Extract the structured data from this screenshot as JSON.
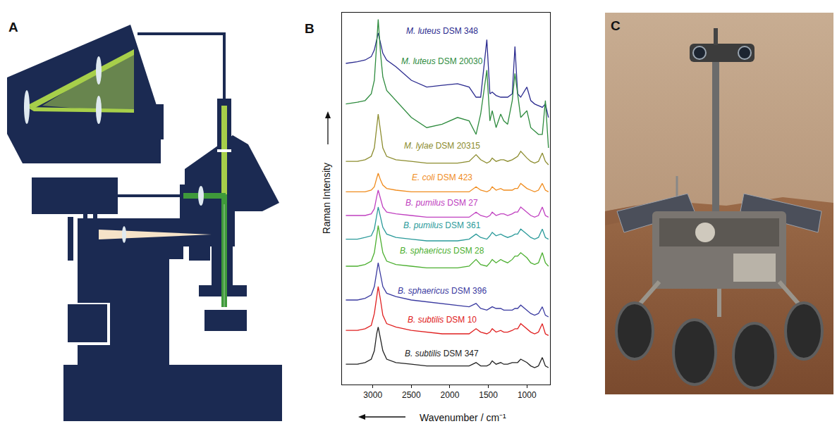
{
  "panel_labels": [
    "A",
    "B",
    "C"
  ],
  "chart_data": {
    "type": "line",
    "x_label": "Wavenumber / cm⁻¹",
    "y_label": "Raman Intensity",
    "x": [
      3350,
      3200,
      3100,
      3020,
      2980,
      2950,
      2930,
      2900,
      2870,
      2820,
      2700,
      2500,
      2300,
      2100,
      1900,
      1750,
      1660,
      1600,
      1520,
      1480,
      1450,
      1400,
      1340,
      1300,
      1250,
      1190,
      1155,
      1120,
      1080,
      1000,
      950,
      900,
      850,
      800,
      760,
      720
    ],
    "xlim": [
      3400,
      700
    ],
    "xticks": [
      3000,
      2500,
      2000,
      1500,
      1000
    ],
    "ylim": [
      0,
      110
    ],
    "yticks": [],
    "tick_labels": "x",
    "grid": false,
    "series": [
      {
        "name": "M. luteus DSM 348",
        "color": "#2b2b8f",
        "values": [
          95,
          95.5,
          96,
          97,
          99,
          102,
          104,
          101,
          98,
          96,
          94,
          90,
          88,
          88.5,
          89,
          88,
          85,
          85,
          102,
          86,
          86.5,
          85.5,
          85,
          85,
          85,
          86,
          100,
          86,
          85,
          88,
          84,
          83,
          82.5,
          82,
          83,
          79
        ]
      },
      {
        "name": "M. luteus DSM 20030",
        "color": "#2e8b3e",
        "values": [
          83,
          83.5,
          84,
          86,
          90,
          100,
          108,
          98,
          91,
          87,
          84,
          79,
          76,
          77,
          79,
          78,
          74,
          80,
          93,
          78,
          81,
          76,
          80,
          78,
          77,
          84,
          92,
          86,
          79,
          81,
          76,
          75,
          74,
          74,
          84,
          70
        ]
      },
      {
        "name": "M. lylae DSM 20315",
        "color": "#8c8c2e",
        "values": [
          66,
          66,
          66.5,
          67.5,
          70,
          76,
          80,
          75,
          70,
          67.5,
          66.5,
          66,
          65.5,
          65.5,
          65.5,
          66,
          68,
          66.5,
          65.5,
          66,
          67,
          66,
          66.5,
          66.5,
          66,
          66.5,
          67,
          67.5,
          69,
          67,
          66,
          65.5,
          66,
          68.5,
          66,
          65
        ]
      },
      {
        "name": "E. coli DSM 423",
        "color": "#f08c1e",
        "values": [
          57,
          57,
          57,
          57.5,
          58.5,
          61,
          62.5,
          60.5,
          59,
          58,
          57.5,
          57,
          57,
          57,
          57,
          57,
          58.5,
          57.5,
          57,
          57.5,
          58.5,
          57.5,
          58,
          57.5,
          57.5,
          57.5,
          58,
          58,
          59.5,
          58,
          57.5,
          57,
          57.5,
          59.5,
          57.5,
          57
        ]
      },
      {
        "name": "B. pumilus DSM 27",
        "color": "#c040c0",
        "values": [
          50,
          50,
          50,
          50.5,
          52,
          55.5,
          57.5,
          55,
          52.5,
          51,
          50.5,
          50,
          49.5,
          49.5,
          49.5,
          49.5,
          51,
          50,
          49.5,
          50,
          51,
          50,
          50.5,
          50.5,
          50,
          50.5,
          51,
          51,
          52.5,
          51,
          50,
          49.5,
          50,
          52.5,
          50,
          49.5
        ]
      },
      {
        "name": "B. pumilus DSM 361",
        "color": "#2a9a9a",
        "values": [
          43,
          43,
          43.5,
          44,
          46,
          50,
          52.5,
          49.5,
          46.5,
          44.5,
          43.5,
          43,
          42.5,
          42.5,
          42.5,
          43,
          44.5,
          43.5,
          43,
          44,
          45,
          44,
          44.5,
          44,
          43.5,
          44,
          44.5,
          44.5,
          46,
          44.5,
          43.5,
          43,
          43.5,
          46,
          43.5,
          43
        ]
      },
      {
        "name": "B. sphaericus DSM 28",
        "color": "#4caf30",
        "values": [
          35,
          35,
          35.5,
          36.5,
          39,
          44,
          47,
          43,
          39,
          36.5,
          35.5,
          35,
          34.5,
          34.5,
          34.5,
          35,
          37,
          35.5,
          35,
          36,
          37,
          36,
          37,
          36.5,
          36,
          37,
          38,
          38,
          39,
          37.5,
          36,
          35.5,
          36,
          39,
          36,
          35
        ]
      },
      {
        "name": "B. sphaericus DSM 396",
        "color": "#3a3aa0",
        "values": [
          25,
          25,
          25.5,
          26.5,
          29,
          33.5,
          36,
          32.5,
          29,
          27,
          26,
          25,
          24.5,
          24,
          23.5,
          23,
          24,
          22.5,
          22,
          22.5,
          23,
          22.5,
          22.5,
          22,
          22,
          22,
          22.5,
          22.5,
          23.5,
          22,
          21,
          20.5,
          21,
          23,
          20.5,
          20
        ]
      },
      {
        "name": "B. subtilis DSM 10",
        "color": "#e02020",
        "values": [
          16,
          16,
          16.5,
          17.5,
          21,
          26.5,
          29,
          25,
          20.5,
          18,
          17,
          16,
          15.5,
          15,
          15,
          15,
          16.5,
          15.5,
          15,
          15.5,
          16.5,
          15.5,
          16,
          15.5,
          15.5,
          16,
          16.5,
          16.5,
          18,
          16.5,
          15.5,
          15,
          15.5,
          18,
          15,
          14.5
        ]
      },
      {
        "name": "B. subtilis DSM 347",
        "color": "#222222",
        "values": [
          6,
          6,
          6.5,
          7.5,
          10,
          15,
          17,
          13.5,
          10,
          7.5,
          6.5,
          6,
          5.5,
          5.5,
          5.5,
          5.5,
          6.5,
          5.5,
          5.5,
          6,
          7,
          6,
          6.5,
          6,
          6,
          6.5,
          6.5,
          6.5,
          7.5,
          6.5,
          5.5,
          5,
          5.5,
          8,
          5.5,
          5
        ]
      }
    ]
  }
}
